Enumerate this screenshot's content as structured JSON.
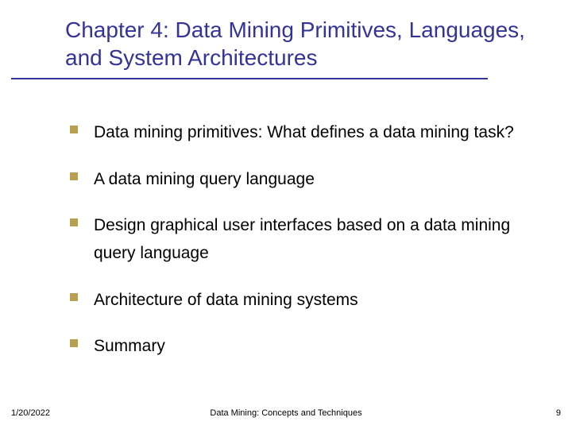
{
  "slide": {
    "title": "Chapter 4: Data Mining Primitives, Languages, and System Architectures",
    "title_color": "#333399",
    "title_fontsize": 28,
    "underline_color": "#333399",
    "bullet_color": "#b8a050",
    "bullet_size": 10,
    "body_fontsize": 21,
    "body_color": "#000000",
    "background_color": "#ffffff",
    "items": [
      {
        "text": "Data mining primitives: What defines a data mining task?"
      },
      {
        "text": "A data mining query language"
      },
      {
        "text": "Design graphical user interfaces based on a data mining query language"
      },
      {
        "text": "Architecture of data mining systems"
      },
      {
        "text": "Summary"
      }
    ],
    "footer": {
      "date": "1/20/2022",
      "center": "Data Mining: Concepts and Techniques",
      "page": "9",
      "fontsize": 11
    }
  }
}
